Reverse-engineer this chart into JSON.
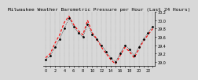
{
  "title": "Milwaukee Weather Barometric Pressure per Hour (Last 24 Hours)",
  "hours": [
    0,
    1,
    2,
    3,
    4,
    5,
    6,
    7,
    8,
    9,
    10,
    11,
    12,
    13,
    14,
    15,
    16,
    17,
    18,
    19,
    20,
    21,
    22,
    23
  ],
  "pressure1": [
    29.05,
    29.15,
    29.35,
    29.55,
    29.8,
    30.05,
    29.85,
    29.7,
    29.6,
    29.9,
    29.65,
    29.55,
    29.4,
    29.25,
    29.1,
    29.0,
    29.2,
    29.4,
    29.3,
    29.15,
    29.35,
    29.55,
    29.7,
    29.85
  ],
  "pressure2": [
    29.1,
    29.2,
    29.45,
    29.65,
    29.95,
    30.1,
    29.9,
    29.75,
    29.65,
    30.0,
    29.7,
    29.55,
    29.35,
    29.2,
    29.05,
    28.95,
    29.15,
    29.35,
    29.25,
    29.1,
    29.3,
    29.5,
    29.65,
    29.8
  ],
  "color1": "#000000",
  "color2": "#ff0000",
  "ylim": [
    28.9,
    30.2
  ],
  "ytick_values": [
    29.0,
    29.2,
    29.4,
    29.6,
    29.8,
    30.0,
    30.2
  ],
  "ytick_labels": [
    "29.0",
    "29.2",
    "29.4",
    "29.6",
    "29.8",
    "30.0",
    "30.2"
  ],
  "title_fontsize": 4.5,
  "tick_fontsize": 3.5,
  "bg_color": "#d8d8d8",
  "plot_bg": "#d8d8d8",
  "grid_color": "#888888",
  "line1_style": "-.",
  "line2_style": "--"
}
